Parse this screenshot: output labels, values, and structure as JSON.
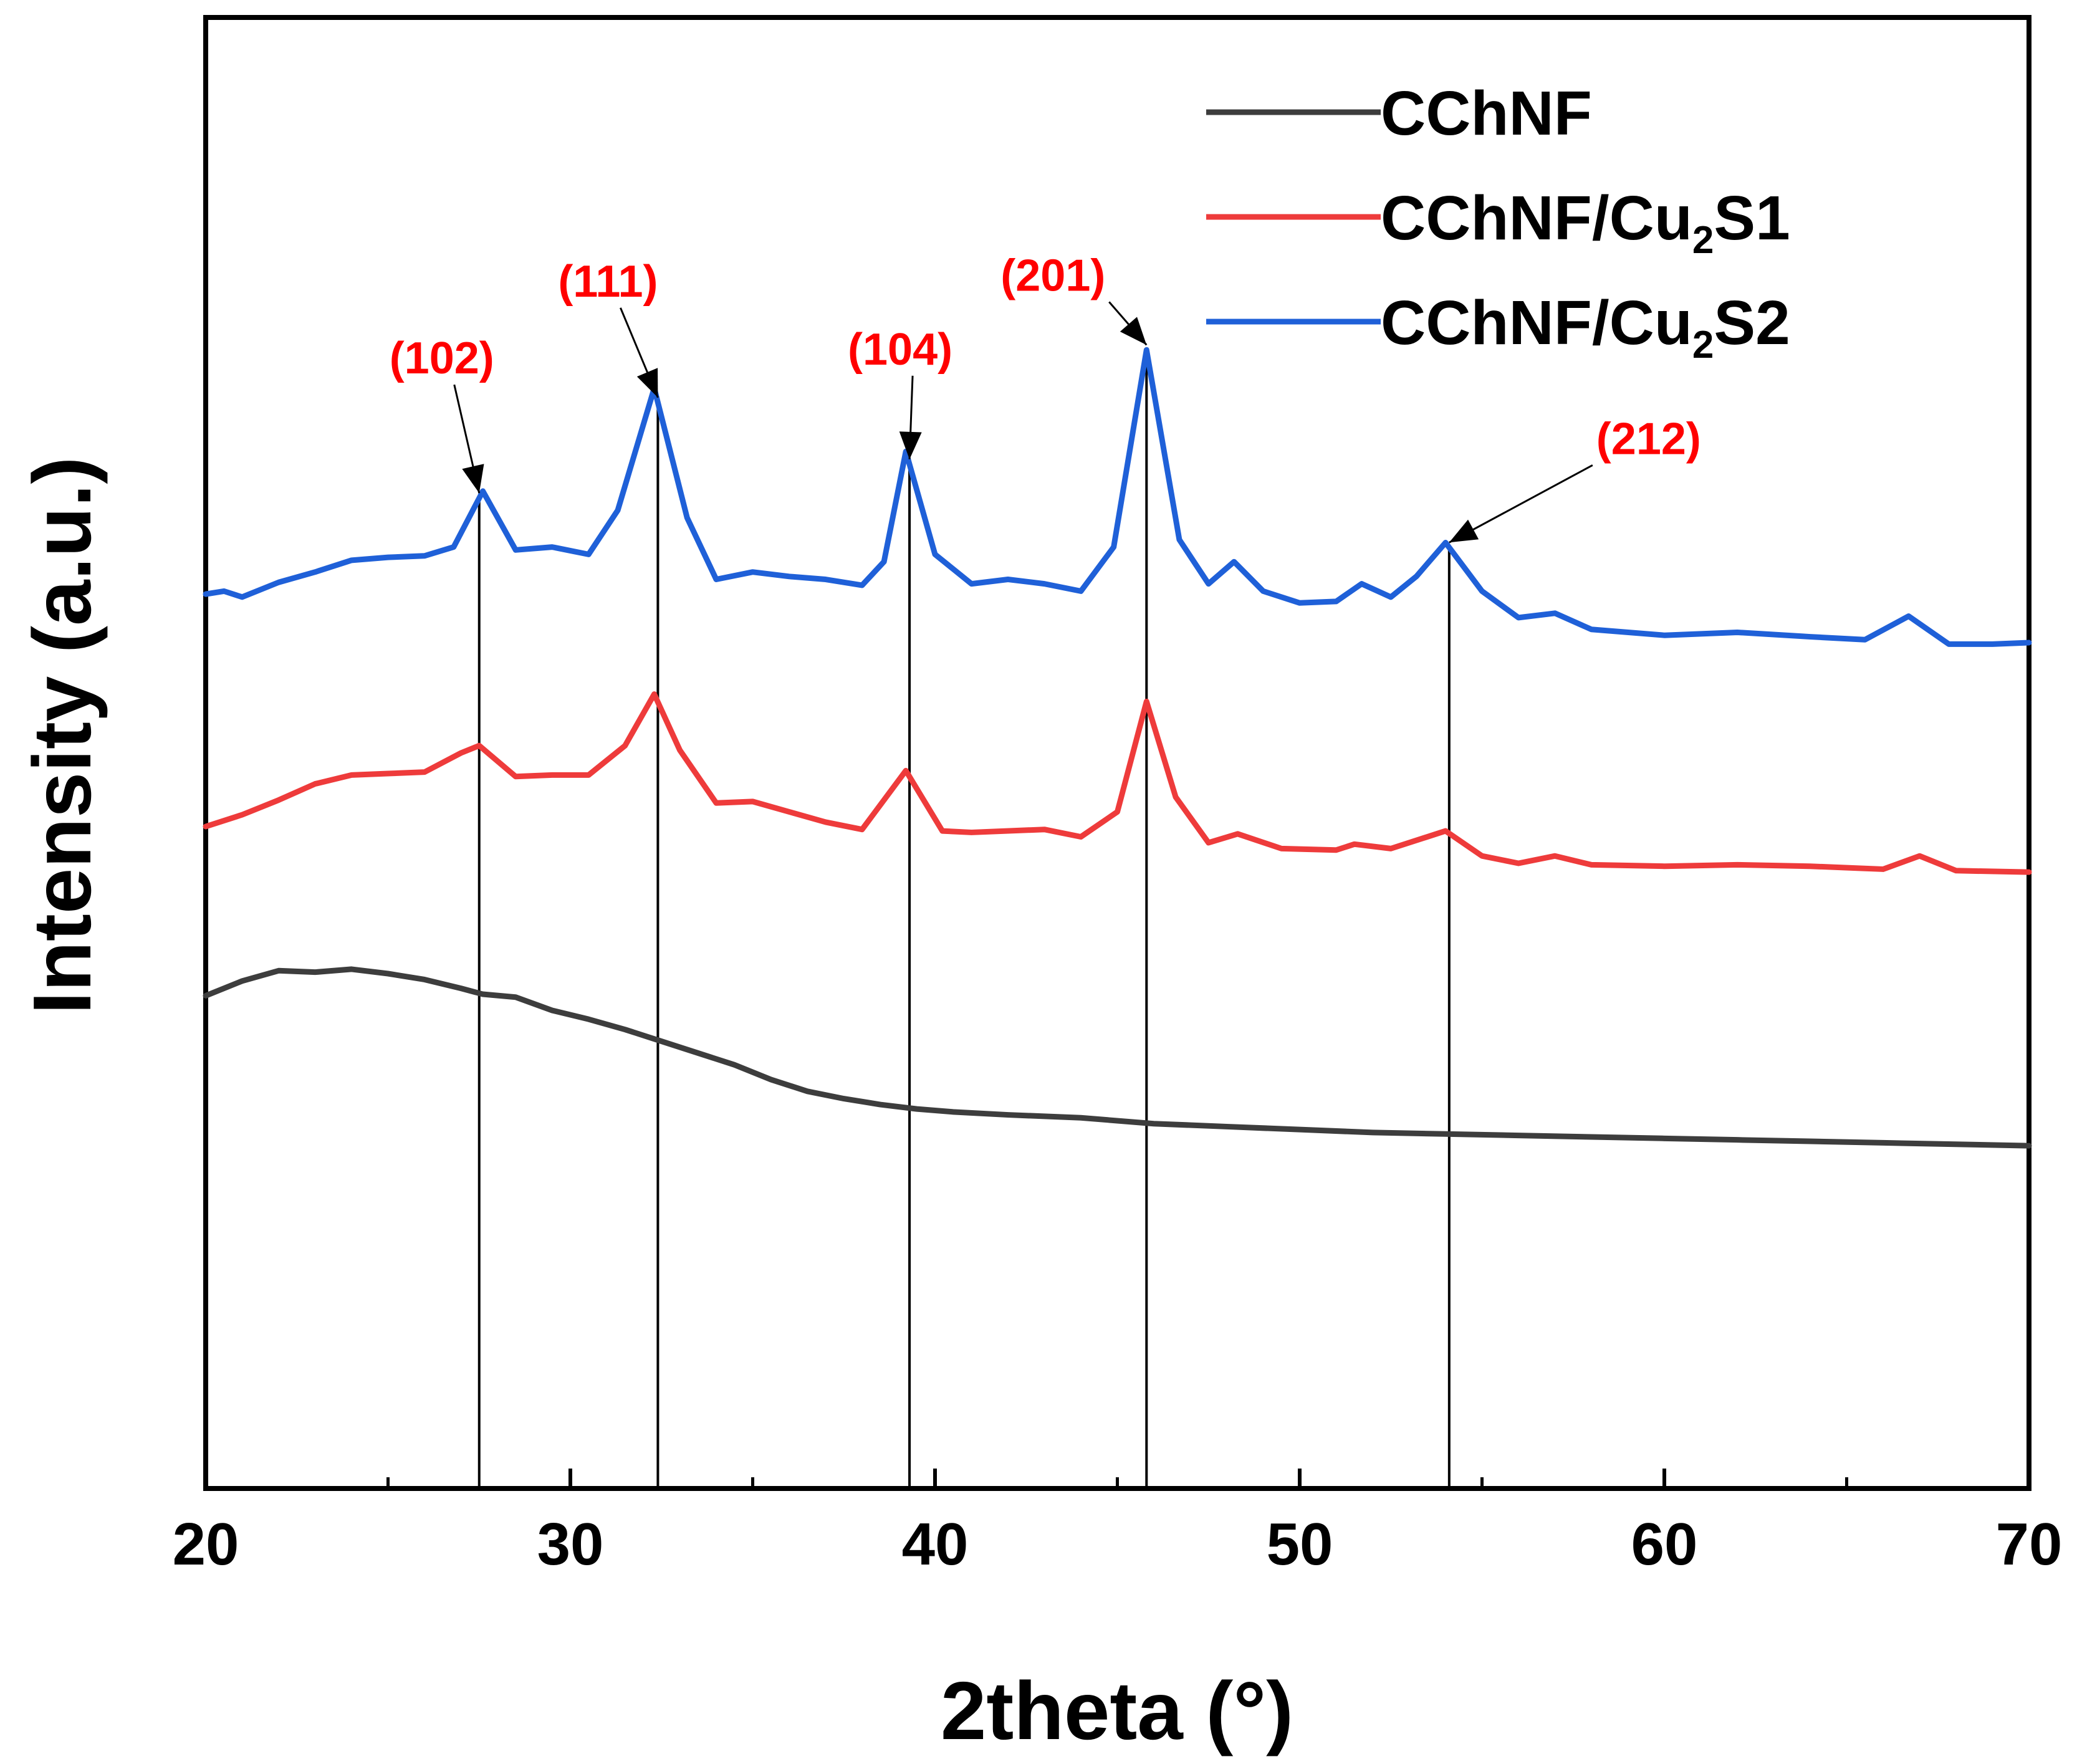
{
  "chart_data": {
    "type": "line",
    "title": "",
    "xlabel": "2theta (°)",
    "ylabel": "Intensity (a.u.)",
    "xlim": [
      20,
      70
    ],
    "ylim": [
      0,
      100
    ],
    "xticks": [
      20,
      30,
      40,
      50,
      60,
      70
    ],
    "grid": false,
    "legend_position": "top-right",
    "series": [
      {
        "name": "CChNF",
        "color": "#3d3d3d",
        "x": [
          20,
          21,
          22,
          23,
          24,
          25,
          26,
          27,
          27.6,
          28.5,
          29.5,
          30.5,
          31.5,
          32.5,
          33.5,
          34.5,
          35.5,
          36.5,
          37.5,
          38.5,
          39.5,
          40.5,
          42,
          44,
          46,
          48,
          50,
          52,
          54,
          56,
          58,
          60,
          62,
          64,
          66,
          68,
          70
        ],
        "values": [
          33.5,
          34.5,
          35.2,
          35.1,
          35.3,
          35.0,
          34.6,
          34.0,
          33.6,
          33.4,
          32.5,
          31.9,
          31.2,
          30.4,
          29.6,
          28.8,
          27.8,
          27.0,
          26.5,
          26.1,
          25.8,
          25.6,
          25.4,
          25.2,
          24.8,
          24.6,
          24.4,
          24.2,
          24.1,
          24.0,
          23.9,
          23.8,
          23.7,
          23.6,
          23.5,
          23.4,
          23.3
        ]
      },
      {
        "name": "CChNF/Cu2S1",
        "color": "#ee3b3b",
        "x": [
          20,
          21,
          22,
          23,
          24,
          25,
          26,
          27,
          27.5,
          28.5,
          29.5,
          30.5,
          31.5,
          32.3,
          33,
          34,
          35,
          36,
          37,
          38,
          39.2,
          40.2,
          41,
          43,
          44,
          45,
          45.8,
          46.6,
          47.5,
          48.3,
          49.5,
          51,
          51.5,
          52.5,
          54,
          55,
          56,
          57,
          58,
          60,
          62,
          64,
          66,
          67,
          68,
          70
        ],
        "values": [
          45.0,
          45.8,
          46.8,
          47.9,
          48.5,
          48.6,
          48.7,
          50.0,
          50.5,
          48.4,
          48.5,
          48.5,
          50.5,
          54.0,
          50.2,
          46.6,
          46.7,
          46.0,
          45.3,
          44.8,
          48.8,
          44.7,
          44.6,
          44.8,
          44.3,
          46.0,
          53.5,
          47.0,
          43.9,
          44.5,
          43.5,
          43.4,
          43.8,
          43.5,
          44.7,
          43.0,
          42.5,
          43.0,
          42.4,
          42.3,
          42.4,
          42.3,
          42.1,
          43.0,
          42.0,
          41.9
        ]
      },
      {
        "name": "CChNF/Cu2S2",
        "color": "#1f60d8",
        "x": [
          20,
          20.5,
          21,
          22,
          23,
          24,
          25,
          26,
          26.8,
          27.6,
          28.5,
          29.5,
          30.5,
          31.3,
          32.3,
          33.2,
          34,
          35,
          36,
          37,
          38,
          38.6,
          39.2,
          40,
          41,
          42,
          43,
          44,
          44.9,
          45.8,
          46.7,
          47.5,
          48.2,
          49,
          50,
          51,
          51.7,
          52.5,
          53.2,
          54,
          55,
          56,
          57,
          58,
          60,
          62,
          64,
          65.5,
          66.7,
          67.8,
          69,
          70
        ],
        "values": [
          60.8,
          61.0,
          60.6,
          61.6,
          62.3,
          63.1,
          63.3,
          63.4,
          64.0,
          67.8,
          63.8,
          64.0,
          63.5,
          66.5,
          74.8,
          66.0,
          61.8,
          62.3,
          62.0,
          61.8,
          61.4,
          63.0,
          70.5,
          63.5,
          61.5,
          61.8,
          61.5,
          61.0,
          64.0,
          77.4,
          64.5,
          61.5,
          63.0,
          61.0,
          60.2,
          60.3,
          61.5,
          60.6,
          62.0,
          64.3,
          61.0,
          59.2,
          59.5,
          58.4,
          58.0,
          58.2,
          57.9,
          57.7,
          59.3,
          57.4,
          57.4,
          57.5
        ]
      }
    ],
    "annotations": [
      {
        "label": "(102)",
        "x": 27.5
      },
      {
        "label": "(111)",
        "x": 32.4
      },
      {
        "label": "(104)",
        "x": 39.3
      },
      {
        "label": "(201)",
        "x": 45.8
      },
      {
        "label": "(212)",
        "x": 54.1
      }
    ]
  },
  "legend": {
    "items": [
      {
        "name": "CChNF",
        "base": "CChNF",
        "sub": "",
        "suffix": "",
        "color": "#3d3d3d"
      },
      {
        "name": "CChNF/Cu2S1",
        "base": "CChNF/Cu",
        "sub": "2",
        "suffix": "S1",
        "color": "#ee3b3b"
      },
      {
        "name": "CChNF/Cu2S2",
        "base": "CChNF/Cu",
        "sub": "2",
        "suffix": "S2",
        "color": "#1f60d8"
      }
    ]
  }
}
